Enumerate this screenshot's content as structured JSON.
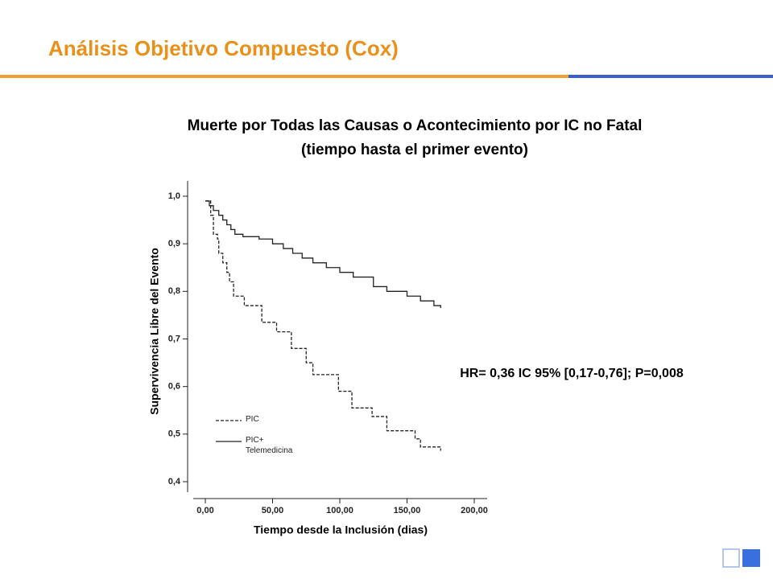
{
  "slide": {
    "title": "Análisis Objetivo Compuesto (Cox)"
  },
  "chart_data": {
    "type": "step",
    "title": "Muerte por Todas las Causas o Acontecimiento por IC no Fatal",
    "subtitle": "(tiempo hasta el primer evento)",
    "annotation": "HR= 0,36 IC 95% [0,17-0,76]; P=0,008",
    "x_label": "Tiempo desde la Inclusión (dias)",
    "y_label": "Supervivencia Libre del Evento",
    "xlim": [
      0,
      200
    ],
    "xticks": [
      {
        "value": 0,
        "label": "0,00"
      },
      {
        "value": 50,
        "label": "50,00"
      },
      {
        "value": 100,
        "label": "100,00"
      },
      {
        "value": 150,
        "label": "150,00"
      },
      {
        "value": 200,
        "label": "200,00"
      }
    ],
    "ylim": [
      0.4,
      1.0
    ],
    "yticks": [
      {
        "value": 0.4,
        "label": "0,4"
      },
      {
        "value": 0.5,
        "label": "0,5"
      },
      {
        "value": 0.6,
        "label": "0,6"
      },
      {
        "value": 0.7,
        "label": "0,7"
      },
      {
        "value": 0.8,
        "label": "0,8"
      },
      {
        "value": 0.9,
        "label": "0,9"
      },
      {
        "value": 1.0,
        "label": "1,0"
      }
    ],
    "series": [
      {
        "name": "PIC",
        "color": "#222222",
        "dashed": true,
        "x": [
          0,
          4,
          6,
          9,
          10,
          13,
          16,
          18,
          21,
          29,
          42,
          53,
          64,
          75,
          80,
          99,
          109,
          124,
          135,
          156,
          160,
          175
        ],
        "values": [
          0.99,
          0.96,
          0.92,
          0.91,
          0.88,
          0.86,
          0.84,
          0.82,
          0.79,
          0.77,
          0.735,
          0.715,
          0.68,
          0.65,
          0.625,
          0.59,
          0.555,
          0.537,
          0.507,
          0.49,
          0.473,
          0.465
        ]
      },
      {
        "name": "PIC+ Telemedicina",
        "color": "#222222",
        "dashed": false,
        "x": [
          0,
          3,
          6,
          10,
          13,
          16,
          19,
          22,
          28,
          40,
          50,
          58,
          65,
          72,
          80,
          90,
          100,
          110,
          125,
          135,
          150,
          160,
          170,
          175
        ],
        "values": [
          0.99,
          0.98,
          0.97,
          0.96,
          0.95,
          0.94,
          0.93,
          0.92,
          0.915,
          0.91,
          0.9,
          0.89,
          0.88,
          0.87,
          0.86,
          0.85,
          0.84,
          0.83,
          0.81,
          0.8,
          0.79,
          0.78,
          0.77,
          0.765
        ]
      }
    ]
  }
}
